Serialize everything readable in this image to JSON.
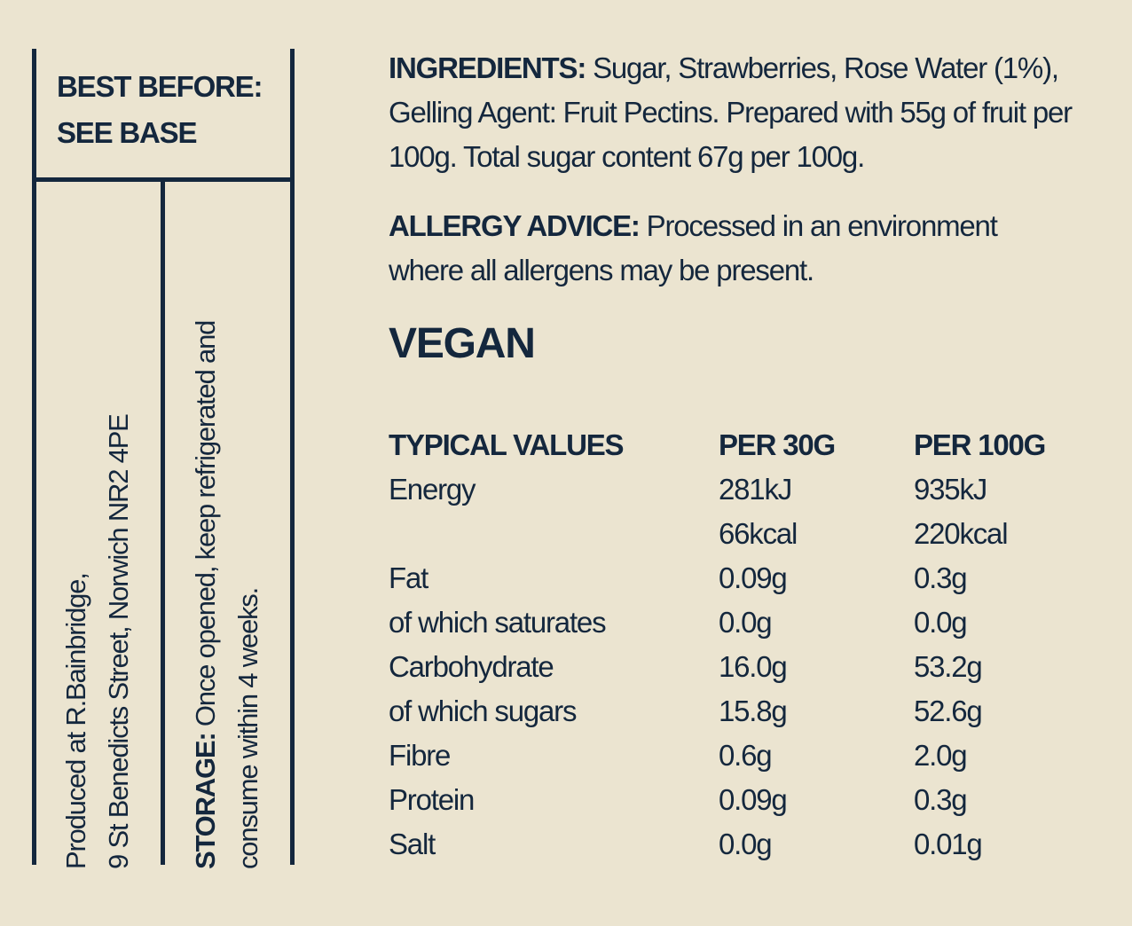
{
  "best_before": {
    "label": "BEST BEFORE:",
    "value": "SEE BASE"
  },
  "producer": {
    "lines": [
      "Produced at R.Bainbridge,",
      "9 St Benedicts Street, Norwich NR2 4PE"
    ]
  },
  "storage": {
    "label": "STORAGE:",
    "text": "Once opened, keep refrigerated and consume within 4 weeks."
  },
  "ingredients": {
    "label": "INGREDIENTS:",
    "text": "Sugar, Strawberries, Rose Water (1%), Gelling Agent: Fruit Pectins. Prepared with 55g of fruit per 100g. Total sugar content 67g per 100g."
  },
  "allergy": {
    "label": "ALLERGY ADVICE:",
    "text": "Processed in an environment where all allergens may be present."
  },
  "vegan": "VEGAN",
  "nutrition": {
    "headers": [
      "TYPICAL VALUES",
      "PER 30G",
      "PER 100G"
    ],
    "rows": [
      [
        "Energy",
        "281kJ",
        "935kJ"
      ],
      [
        null,
        "66kcal",
        "220kcal"
      ],
      [
        "Fat",
        "0.09g",
        "0.3g"
      ],
      [
        "of which saturates",
        "0.0g",
        "0.0g"
      ],
      [
        "Carbohydrate",
        "16.0g",
        "53.2g"
      ],
      [
        "of which sugars",
        "15.8g",
        "52.6g"
      ],
      [
        "Fibre",
        "0.6g",
        "2.0g"
      ],
      [
        "Protein",
        "0.09g",
        "0.3g"
      ],
      [
        "Salt",
        "0.0g",
        "0.01g"
      ]
    ]
  }
}
